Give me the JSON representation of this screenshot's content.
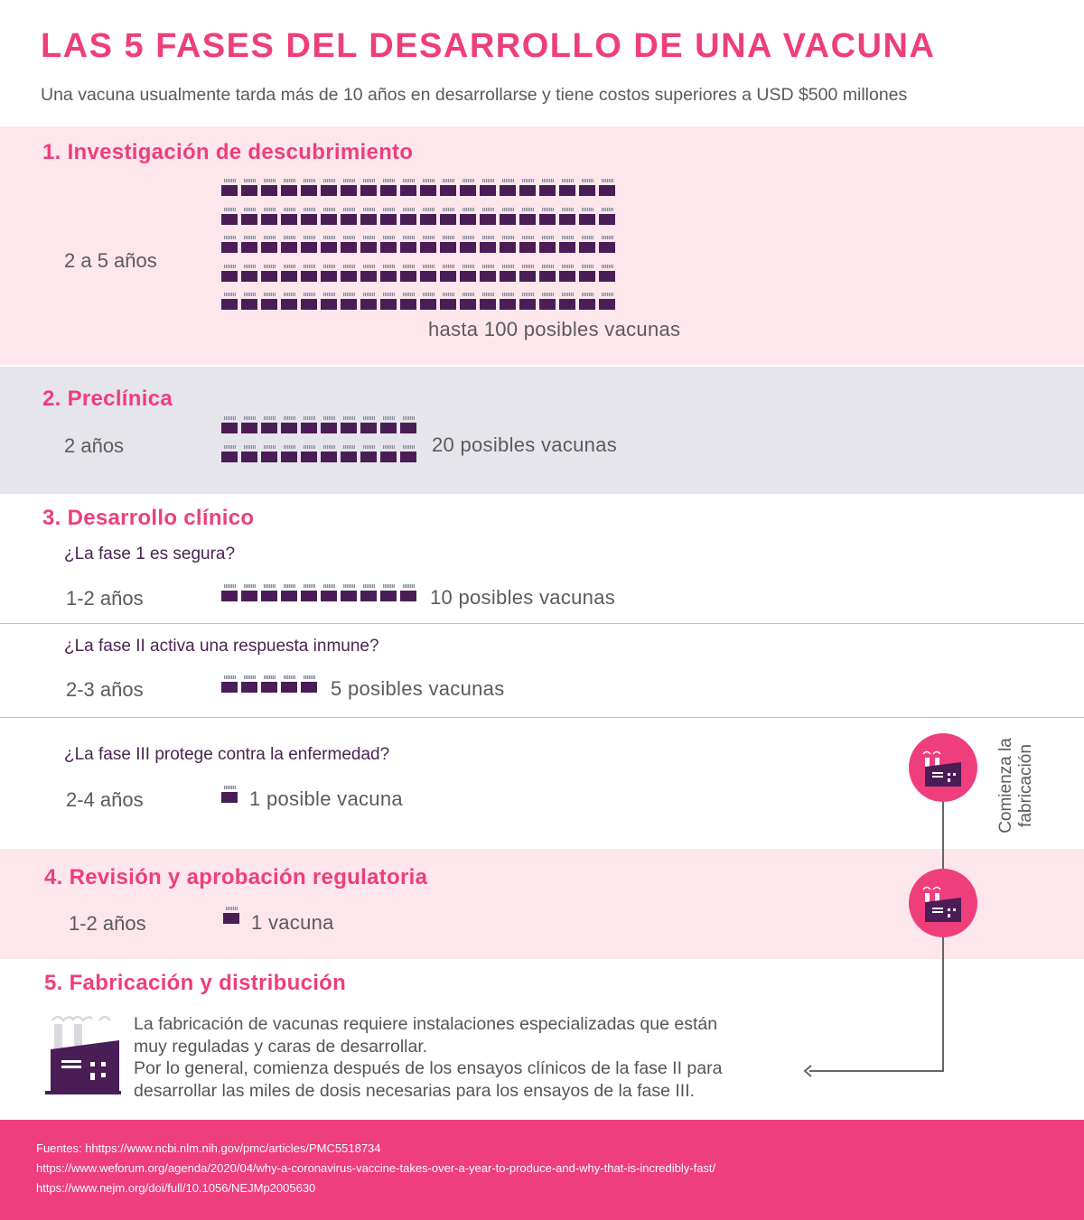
{
  "title": "LAS 5 FASES DEL DESARROLLO DE UNA VACUNA",
  "subtitle": "Una vacuna usualmente tarda más de 10 años en desarrollarse y tiene costos superiores a USD $500 millones",
  "colors": {
    "accent": "#ee3e7c",
    "vial": "#4a1d56",
    "band_pink": "#fde6ec",
    "band_gray": "#e6e5eb"
  },
  "phases": [
    {
      "title": "1. Investigación de descubrimiento",
      "duration": "2 a 5 años",
      "count_label": "hasta 100 posibles vacunas",
      "vials": 100
    },
    {
      "title": "2. Preclínica",
      "duration": "2 años",
      "count_label": "20 posibles vacunas",
      "vials": 20
    },
    {
      "title": "3. Desarrollo clínico",
      "steps": [
        {
          "question": "¿La fase 1 es segura?",
          "duration": "1-2 años",
          "count_label": "10 posibles vacunas",
          "vials": 10
        },
        {
          "question": "¿La fase II activa una respuesta inmune?",
          "duration": "2-3 años",
          "count_label": "5 posibles vacunas",
          "vials": 5
        },
        {
          "question": "¿La fase III protege contra la enfermedad?",
          "duration": "2-4 años",
          "count_label": "1 posible vacuna",
          "vials": 1
        }
      ]
    },
    {
      "title": "4. Revisión y aprobación regulatoria",
      "duration": "1-2 años",
      "count_label": "1 vacuna",
      "vials": 1
    },
    {
      "title": "5. Fabricación y distribución",
      "paragraph_lines": [
        "La fabricación de vacunas requiere instalaciones especializadas que están",
        "muy reguladas y caras de desarrollar.",
        "Por lo general, comienza después de los ensayos clínicos de la fase II para",
        "desarrollar las miles de dosis necesarias para los ensayos de la fase III."
      ]
    }
  ],
  "side_label_lines": [
    "Comienza la",
    "fabricación"
  ],
  "icons": {
    "manufacturing": "factory-icon",
    "vaccine": "vial-icon"
  },
  "sources": [
    "Fuentes: hhttps://www.ncbi.nlm.nih.gov/pmc/articles/PMC5518734",
    "https://www.weforum.org/agenda/2020/04/why-a-coronavirus-vaccine-takes-over-a-year-to-produce-and-why-that-is-incredibly-fast/",
    "https://www.nejm.org/doi/full/10.1056/NEJMp2005630"
  ]
}
